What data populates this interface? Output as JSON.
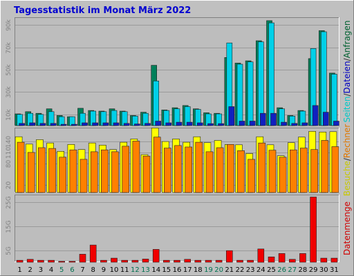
{
  "chart_data": {
    "type": "bar",
    "title": "Tagesstatistik im Monat März 2022",
    "categories": [
      "1",
      "2",
      "3",
      "4",
      "5",
      "6",
      "7",
      "8",
      "9",
      "10",
      "11",
      "12",
      "13",
      "14",
      "15",
      "16",
      "17",
      "18",
      "19",
      "20",
      "21",
      "22",
      "23",
      "24",
      "25",
      "26",
      "27",
      "28",
      "29",
      "30",
      "31"
    ],
    "weekend_days": [
      "5",
      "6",
      "12",
      "13",
      "19",
      "20",
      "26",
      "27"
    ],
    "grid": true,
    "legend": "right",
    "panels": [
      {
        "ylabel_parts": [
          {
            "text": "Seiten",
            "color": "#00c8c8"
          },
          {
            "text": "/",
            "color": "#303030"
          },
          {
            "text": "Dateien",
            "color": "#0000c0"
          },
          {
            "text": "/",
            "color": "#303030"
          },
          {
            "text": "Anfragen",
            "color": "#006030"
          }
        ],
        "ylim": [
          0,
          97000
        ],
        "ticks": [
          {
            "value": 10000,
            "label": "10k"
          },
          {
            "value": 30000,
            "label": "30k"
          },
          {
            "value": 50000,
            "label": "50k"
          },
          {
            "value": 70000,
            "label": "70k"
          },
          {
            "value": 90000,
            "label": "90k"
          }
        ],
        "series": [
          {
            "name": "Anfragen",
            "color": "#00805a",
            "values": [
              10500,
              12500,
              11000,
              15000,
              9000,
              8000,
              15500,
              13500,
              13000,
              15000,
              13000,
              9000,
              12000,
              54000,
              14000,
              16000,
              18000,
              15000,
              11500,
              11000,
              61000,
              56000,
              58000,
              76000,
              94000,
              16000,
              9000,
              13500,
              60000,
              85000,
              47000
            ]
          },
          {
            "name": "Dateien",
            "color": "#00d0e8",
            "values": [
              10000,
              11000,
              10000,
              12500,
              8000,
              8000,
              11000,
              13000,
              12500,
              13500,
              12500,
              8500,
              11000,
              40000,
              13500,
              15000,
              17000,
              14500,
              10500,
              10500,
              74000,
              55000,
              57000,
              75000,
              92000,
              15000,
              8500,
              13000,
              69000,
              84000,
              46000
            ]
          },
          {
            "name": "Seiten",
            "color": "#1020c0",
            "values": [
              2000,
              2500,
              2000,
              2000,
              1200,
              1200,
              2500,
              2500,
              2500,
              2500,
              2000,
              1500,
              2000,
              4000,
              2500,
              3000,
              3000,
              2500,
              1800,
              1800,
              17000,
              4000,
              4000,
              11000,
              11000,
              3000,
              2000,
              2500,
              18000,
              12000,
              4000
            ]
          }
        ]
      },
      {
        "ylabel_parts": [
          {
            "text": "Besuche",
            "color": "#c8c800"
          },
          {
            "text": "/",
            "color": "#303030"
          },
          {
            "text": "Rechner",
            "color": "#e07800"
          }
        ],
        "ylim": [
          0,
          178
        ],
        "ticks": [
          {
            "value": 20,
            "label": "20"
          },
          {
            "value": 80,
            "label": "80"
          },
          {
            "value": 110,
            "label": "110"
          },
          {
            "value": 140,
            "label": "140"
          }
        ],
        "series": [
          {
            "name": "Besuche",
            "color": "#ffff00",
            "values": [
              153,
              133,
              145,
              136,
              113,
              132,
              118,
              136,
              130,
              118,
              138,
              147,
              104,
              177,
              140,
              147,
              138,
              153,
              137,
              143,
              132,
              131,
              107,
              153,
              131,
              101,
              137,
              152,
              168,
              166,
              167
            ]
          },
          {
            "name": "Rechner",
            "color": "#ff8000",
            "values": [
              138,
              110,
              123,
              121,
              97,
              117,
              91,
              112,
              117,
              112,
              127,
              141,
              100,
              152,
              122,
              129,
              125,
              138,
              112,
              123,
              132,
              115,
              91,
              136,
              116,
              97,
              117,
              122,
              118,
              143,
              126
            ]
          }
        ]
      },
      {
        "ylabel_parts": [
          {
            "text": "Datenmenge",
            "color": "#d00000"
          }
        ],
        "ylim": [
          0,
          28
        ],
        "ticks": [
          {
            "value": 5,
            "label": "5G"
          },
          {
            "value": 15,
            "label": "15G"
          },
          {
            "value": 25,
            "label": "25G"
          }
        ],
        "series": [
          {
            "name": "Datenmenge",
            "color": "#f00000",
            "values": [
              0.8,
              1.2,
              0.8,
              0.8,
              0.4,
              0.4,
              3.3,
              7.1,
              0.8,
              1.7,
              0.8,
              0.8,
              1.3,
              5.3,
              0.8,
              0.8,
              1.2,
              0.8,
              0.8,
              0.8,
              4.8,
              0.8,
              0.8,
              5.5,
              2.2,
              3.6,
              1.2,
              3.6,
              27.0,
              1.7,
              1.7
            ]
          }
        ]
      }
    ]
  }
}
